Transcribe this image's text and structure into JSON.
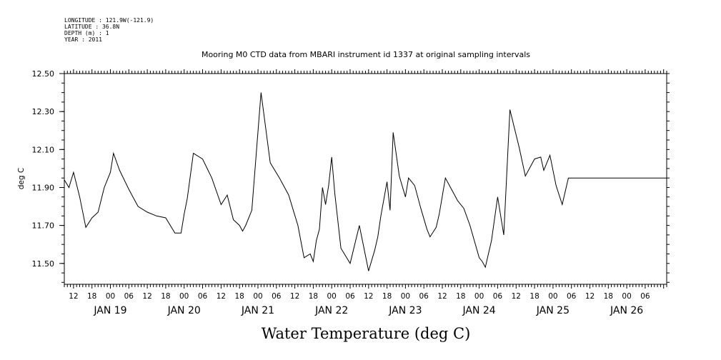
{
  "header": {
    "meta_lines": [
      "LONGITUDE : 121.9W(-121.9)",
      "LATITUDE : 36.8N",
      "DEPTH (m) : 1",
      "YEAR : 2011"
    ]
  },
  "chart_data": {
    "type": "line",
    "title": "Mooring M0 CTD data from MBARI instrument id 1337 at original sampling intervals",
    "ylabel": "deg C",
    "xlabel": "Water Temperature (deg C)",
    "ylim": [
      11.39,
      12.5
    ],
    "yticks": [
      "12.50",
      "12.30",
      "12.10",
      "11.90",
      "11.70",
      "11.50"
    ],
    "xlim": [
      "2011-01-18T09:00",
      "2011-01-26T13:00"
    ],
    "hour_labels": [
      "12",
      "18",
      "00",
      "06",
      "12",
      "18",
      "00",
      "06",
      "12",
      "18",
      "00",
      "06",
      "12",
      "18",
      "00",
      "06",
      "12",
      "18",
      "00",
      "06",
      "12",
      "18",
      "00",
      "06",
      "12",
      "18",
      "00",
      "06",
      "12",
      "18",
      "00",
      "06"
    ],
    "day_labels": [
      "JAN 19",
      "JAN 20",
      "JAN 21",
      "JAN 22",
      "JAN 23",
      "JAN 24",
      "JAN 25",
      "JAN 26"
    ],
    "grid": false,
    "series": [
      {
        "x": [
          "2011-01-18T09:00",
          "2011-01-18T10:30",
          "2011-01-18T12:00",
          "2011-01-18T14:00",
          "2011-01-18T16:00",
          "2011-01-18T18:00",
          "2011-01-18T20:00",
          "2011-01-18T22:00",
          "2011-01-19T00:00",
          "2011-01-19T01:00",
          "2011-01-19T03:00",
          "2011-01-19T06:00",
          "2011-01-19T09:00",
          "2011-01-19T12:00",
          "2011-01-19T15:00",
          "2011-01-19T18:00",
          "2011-01-19T21:00",
          "2011-01-19T23:00",
          "2011-01-20T00:00",
          "2011-01-20T01:00",
          "2011-01-20T03:00",
          "2011-01-20T06:00",
          "2011-01-20T09:00",
          "2011-01-20T12:00",
          "2011-01-20T14:00",
          "2011-01-20T16:00",
          "2011-01-20T18:00",
          "2011-01-20T19:00",
          "2011-01-20T20:00",
          "2011-01-20T22:00",
          "2011-01-21T01:00",
          "2011-01-21T04:00",
          "2011-01-21T07:00",
          "2011-01-21T10:00",
          "2011-01-21T13:00",
          "2011-01-21T15:00",
          "2011-01-21T17:00",
          "2011-01-21T18:00",
          "2011-01-21T19:00",
          "2011-01-21T20:00",
          "2011-01-21T21:00",
          "2011-01-21T22:00",
          "2011-01-21T23:00",
          "2011-01-22T00:00",
          "2011-01-22T01:00",
          "2011-01-22T03:00",
          "2011-01-22T06:00",
          "2011-01-22T09:00",
          "2011-01-22T12:00",
          "2011-01-22T14:00",
          "2011-01-22T15:00",
          "2011-01-22T16:00",
          "2011-01-22T18:00",
          "2011-01-22T19:00",
          "2011-01-22T20:00",
          "2011-01-22T22:00",
          "2011-01-23T00:00",
          "2011-01-23T01:00",
          "2011-01-23T03:00",
          "2011-01-23T05:00",
          "2011-01-23T07:00",
          "2011-01-23T08:00",
          "2011-01-23T10:00",
          "2011-01-23T11:00",
          "2011-01-23T13:00",
          "2011-01-23T15:00",
          "2011-01-23T17:00",
          "2011-01-23T19:00",
          "2011-01-23T21:00",
          "2011-01-24T00:00",
          "2011-01-24T01:00",
          "2011-01-24T02:00",
          "2011-01-24T04:00",
          "2011-01-24T06:00",
          "2011-01-24T08:00",
          "2011-01-24T10:00",
          "2011-01-24T13:00",
          "2011-01-24T15:00",
          "2011-01-24T18:00",
          "2011-01-24T20:00",
          "2011-01-24T21:00",
          "2011-01-24T23:00",
          "2011-01-25T01:00",
          "2011-01-25T03:00",
          "2011-01-25T05:00",
          "2011-01-25T06:00",
          "2011-01-25T07:00",
          "2011-01-25T09:00",
          "2011-01-25T11:00",
          "2011-01-25T13:00",
          "2011-01-25T15:00",
          "2011-01-25T16:00",
          "2011-01-25T18:00",
          "2011-01-25T20:00",
          "2011-01-25T21:00",
          "2011-01-25T22:00",
          "2011-01-25T23:00",
          "2011-01-26T00:00",
          "2011-01-26T01:00",
          "2011-01-26T02:00",
          "2011-01-26T04:00",
          "2011-01-26T06:00",
          "2011-01-26T08:00",
          "2011-01-26T10:00",
          "2011-01-26T11:00",
          "2011-01-26T12:00",
          "2011-01-26T13:00"
        ],
        "values": [
          11.94,
          11.9,
          11.98,
          11.85,
          11.69,
          11.74,
          11.77,
          11.9,
          11.98,
          12.08,
          11.99,
          11.89,
          11.8,
          11.77,
          11.75,
          11.74,
          11.66,
          11.66,
          11.76,
          11.84,
          12.08,
          12.05,
          11.95,
          11.81,
          11.86,
          11.73,
          11.7,
          11.67,
          11.7,
          11.78,
          12.4,
          12.03,
          11.95,
          11.86,
          11.7,
          11.53,
          11.55,
          11.51,
          11.62,
          11.68,
          11.9,
          11.81,
          11.91,
          12.06,
          11.87,
          11.58,
          11.5,
          11.7,
          11.46,
          11.57,
          11.64,
          11.75,
          11.93,
          11.78,
          12.19,
          11.96,
          11.85,
          11.95,
          11.91,
          11.79,
          11.68,
          11.64,
          11.69,
          11.76,
          11.95,
          11.89,
          11.83,
          11.79,
          11.7,
          11.53,
          11.51,
          11.48,
          11.62,
          11.85,
          11.65,
          12.31,
          12.11,
          11.96,
          12.05,
          12.06,
          11.99,
          12.07,
          11.91,
          11.81,
          11.95,
          11.95,
          11.95,
          11.95,
          11.95,
          11.95,
          11.95,
          11.95,
          11.95,
          11.95,
          11.95,
          11.95,
          11.95,
          11.95,
          11.95,
          11.95,
          11.95,
          11.95,
          11.95,
          11.95,
          11.95,
          11.95,
          11.95
        ]
      }
    ]
  }
}
